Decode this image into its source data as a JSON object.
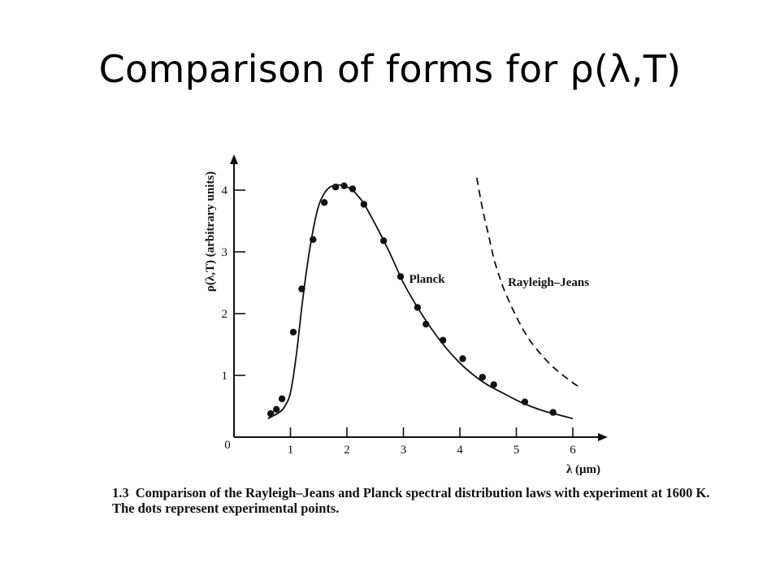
{
  "slide": {
    "title": "Comparison of forms for ρ(λ,T)"
  },
  "figure": {
    "number": "1.3",
    "caption": "Comparison of the Rayleigh–Jeans and Planck spectral distribution laws with experiment at 1600 K. The dots represent experimental points."
  },
  "chart_data": {
    "type": "line",
    "xlabel": "λ (μm)",
    "ylabel": "ρ(λ,T) (arbitrary units)",
    "xlim": [
      0,
      6.5
    ],
    "ylim": [
      0,
      4.4
    ],
    "x_ticks": [
      1,
      2,
      3,
      4,
      5,
      6
    ],
    "x_tick_labels": [
      "1",
      "2",
      "3",
      "4",
      "5",
      "6"
    ],
    "y_ticks": [
      1,
      2,
      3,
      4
    ],
    "y_tick_labels": [
      "1",
      "2",
      "3",
      "4"
    ],
    "origin_label": "0",
    "series": [
      {
        "name": "Planck",
        "style": "solid",
        "x": [
          0.6,
          0.8,
          0.9,
          1.0,
          1.1,
          1.2,
          1.3,
          1.4,
          1.5,
          1.6,
          1.7,
          1.8,
          1.9,
          2.0,
          2.1,
          2.2,
          2.3,
          2.5,
          2.75,
          3.0,
          3.25,
          3.5,
          3.75,
          4.0,
          4.25,
          4.5,
          4.75,
          5.0,
          5.25,
          5.5,
          5.75,
          6.0
        ],
        "y": [
          0.3,
          0.4,
          0.5,
          0.72,
          1.3,
          2.1,
          2.8,
          3.35,
          3.75,
          3.95,
          4.05,
          4.08,
          4.08,
          4.05,
          4.0,
          3.9,
          3.78,
          3.45,
          3.0,
          2.5,
          2.1,
          1.75,
          1.45,
          1.2,
          1.0,
          0.84,
          0.72,
          0.6,
          0.5,
          0.42,
          0.36,
          0.3
        ]
      },
      {
        "name": "Rayleigh–Jeans",
        "style": "dashed",
        "x": [
          4.3,
          4.4,
          4.5,
          4.6,
          4.7,
          4.8,
          5.0,
          5.2,
          5.4,
          5.6,
          5.8,
          6.0,
          6.1
        ],
        "y": [
          4.2,
          3.7,
          3.3,
          2.9,
          2.6,
          2.35,
          1.95,
          1.62,
          1.38,
          1.18,
          1.02,
          0.88,
          0.82
        ]
      }
    ],
    "points": {
      "name": "experimental points",
      "x": [
        0.65,
        0.75,
        0.85,
        1.05,
        1.2,
        1.4,
        1.6,
        1.8,
        1.95,
        2.1,
        2.3,
        2.65,
        2.95,
        3.25,
        3.4,
        3.7,
        4.05,
        4.4,
        4.6,
        5.15,
        5.65
      ],
      "y": [
        0.38,
        0.45,
        0.62,
        1.7,
        2.4,
        3.2,
        3.8,
        4.05,
        4.07,
        4.02,
        3.77,
        3.18,
        2.6,
        2.1,
        1.83,
        1.57,
        1.27,
        0.97,
        0.85,
        0.57,
        0.4
      ]
    },
    "annotations": [
      {
        "text": "Planck",
        "x": 3.1,
        "y": 2.5
      },
      {
        "text": "Rayleigh–Jeans",
        "x": 4.85,
        "y": 2.45
      }
    ],
    "grid": false,
    "colors": {
      "ink": "#111111",
      "background": "#ffffff"
    }
  }
}
